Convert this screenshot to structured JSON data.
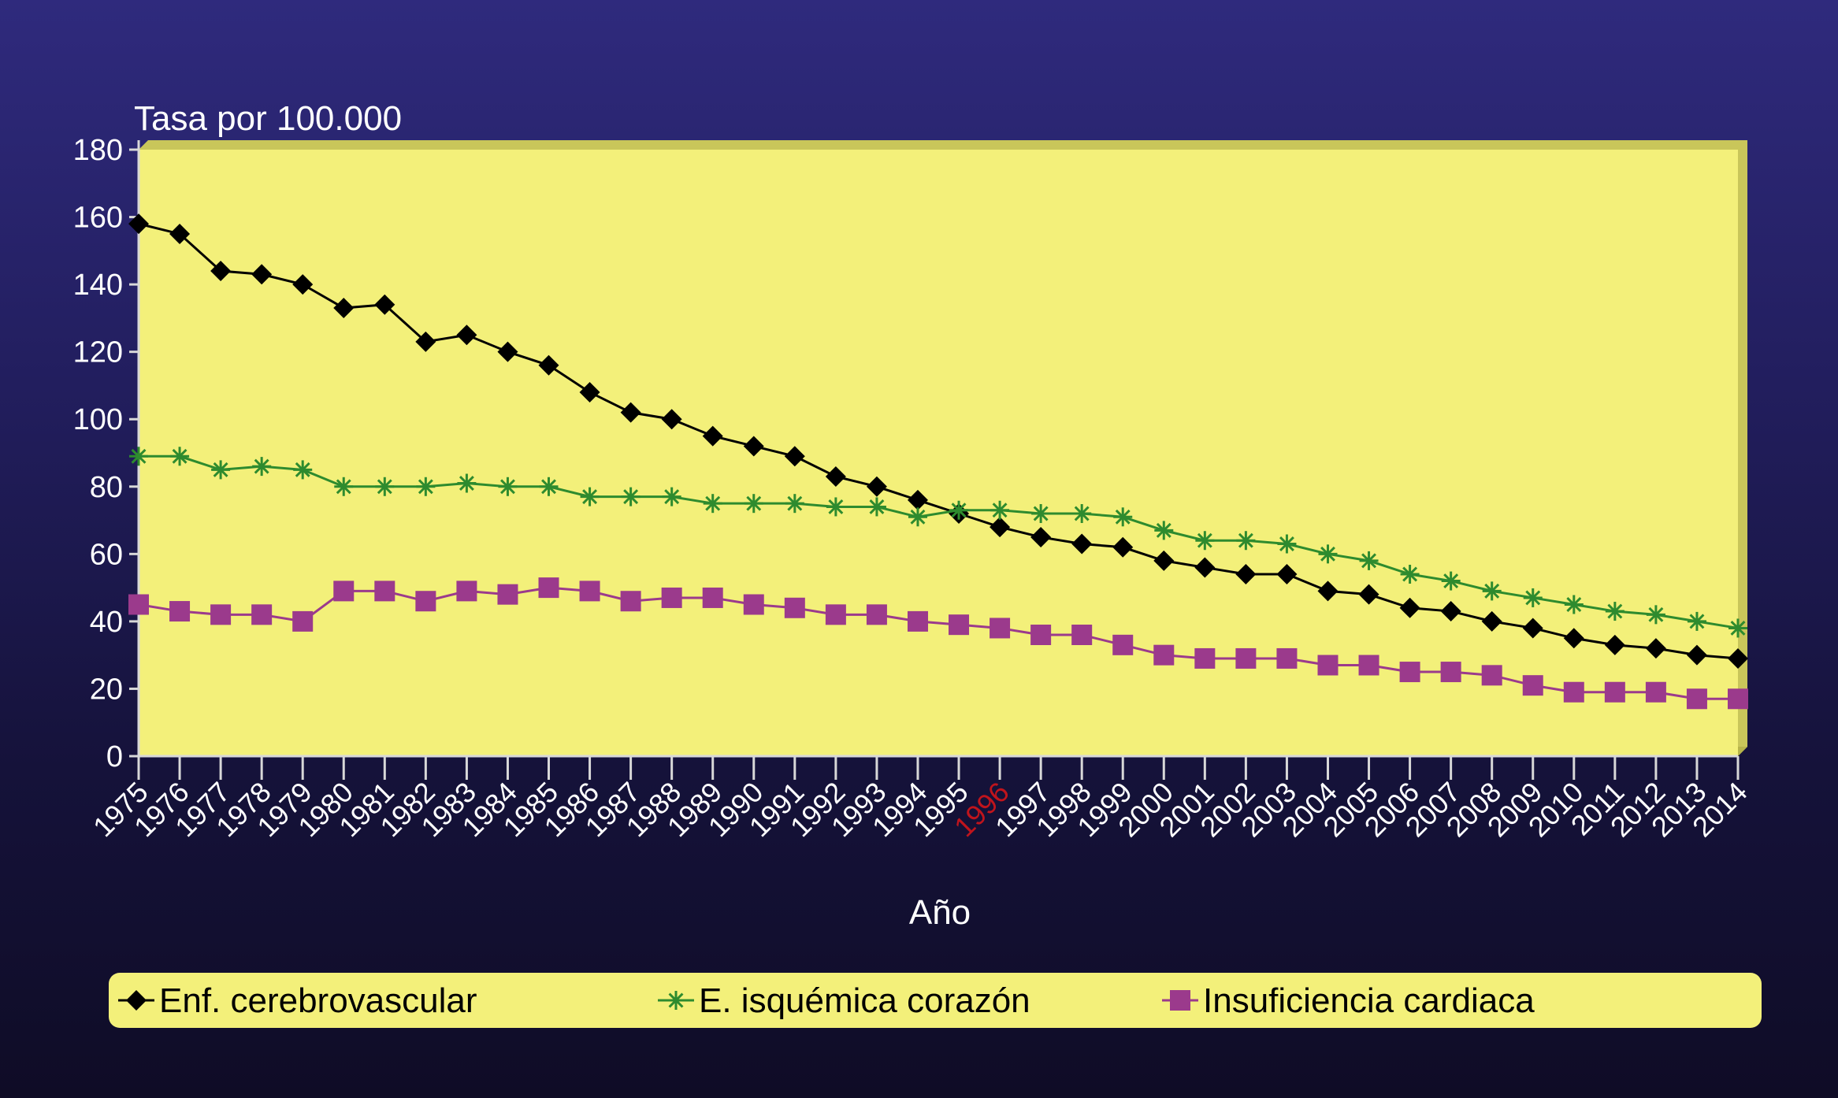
{
  "chart_data": {
    "type": "line",
    "ylabel": "Tasa por 100.000",
    "xlabel": "Año",
    "ylim": [
      0,
      180
    ],
    "yticks": [
      0,
      20,
      40,
      60,
      80,
      100,
      120,
      140,
      160,
      180
    ],
    "highlight_category": "1996",
    "highlight_color": "#c0141c",
    "plot_background": "#f3f07a",
    "legend_background": "#f3f07a",
    "legend_position": "bottom",
    "grid": false,
    "categories": [
      "1975",
      "1976",
      "1977",
      "1978",
      "1979",
      "1980",
      "1981",
      "1982",
      "1983",
      "1984",
      "1985",
      "1986",
      "1987",
      "1988",
      "1989",
      "1990",
      "1991",
      "1992",
      "1993",
      "1994",
      "1995",
      "1996",
      "1997",
      "1998",
      "1999",
      "2000",
      "2001",
      "2002",
      "2003",
      "2004",
      "2005",
      "2006",
      "2007",
      "2008",
      "2009",
      "2010",
      "2011",
      "2012",
      "2013",
      "2014"
    ],
    "series": [
      {
        "name": "Enf. cerebrovascular",
        "marker": "diamond",
        "color": "#000000",
        "values": [
          158,
          155,
          144,
          143,
          140,
          133,
          134,
          123,
          125,
          120,
          116,
          108,
          102,
          100,
          95,
          92,
          89,
          83,
          80,
          76,
          72,
          68,
          65,
          63,
          62,
          58,
          56,
          54,
          54,
          49,
          48,
          44,
          43,
          40,
          38,
          35,
          33,
          32,
          30,
          29
        ]
      },
      {
        "name": "E. isquémica corazón",
        "marker": "star",
        "color": "#2e8b2e",
        "values": [
          89,
          89,
          85,
          86,
          85,
          80,
          80,
          80,
          81,
          80,
          80,
          77,
          77,
          77,
          75,
          75,
          75,
          74,
          74,
          71,
          73,
          73,
          72,
          72,
          71,
          67,
          64,
          64,
          63,
          60,
          58,
          54,
          52,
          49,
          47,
          45,
          43,
          42,
          40,
          38
        ]
      },
      {
        "name": "Insuficiencia cardiaca",
        "marker": "square",
        "color": "#9b3a8c",
        "values": [
          45,
          43,
          42,
          42,
          40,
          49,
          49,
          46,
          49,
          48,
          50,
          49,
          46,
          47,
          47,
          45,
          44,
          42,
          42,
          40,
          39,
          38,
          36,
          36,
          33,
          30,
          29,
          29,
          29,
          27,
          27,
          25,
          25,
          24,
          21,
          19,
          19,
          19,
          17,
          17
        ]
      }
    ]
  }
}
